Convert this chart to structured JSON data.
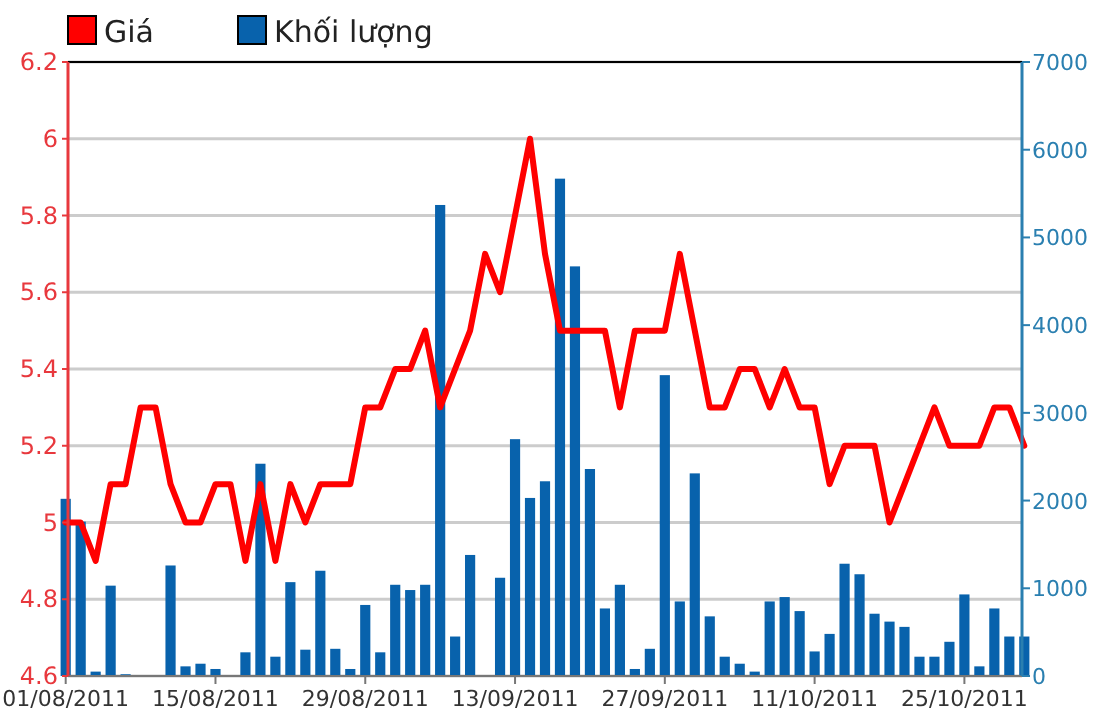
{
  "chart_data": {
    "type": "line",
    "categories": [
      "01/08/2011",
      null,
      null,
      null,
      null,
      null,
      null,
      null,
      null,
      null,
      "15/08/2011",
      null,
      null,
      null,
      null,
      null,
      null,
      null,
      null,
      null,
      "29/08/2011",
      null,
      null,
      null,
      null,
      null,
      null,
      null,
      null,
      null,
      "13/09/2011",
      null,
      null,
      null,
      null,
      null,
      null,
      null,
      null,
      null,
      "27/09/2011",
      null,
      null,
      null,
      null,
      null,
      null,
      null,
      null,
      null,
      "11/10/2011",
      null,
      null,
      null,
      null,
      null,
      null,
      null,
      null,
      null,
      "25/10/2011",
      null,
      null,
      null,
      null
    ],
    "series": [
      {
        "name": "Khối lượng",
        "type": "bar",
        "axis": "y2",
        "color": "#0862ac",
        "values": [
          2020,
          1760,
          50,
          1030,
          20,
          0,
          0,
          1260,
          110,
          140,
          80,
          0,
          270,
          2420,
          220,
          1070,
          300,
          1200,
          310,
          80,
          810,
          270,
          1040,
          980,
          1040,
          5370,
          450,
          1380,
          0,
          1120,
          2700,
          2030,
          2220,
          5670,
          4670,
          2360,
          770,
          1040,
          80,
          310,
          3430,
          850,
          2310,
          680,
          220,
          140,
          50,
          850,
          900,
          740,
          280,
          480,
          1280,
          1160,
          710,
          620,
          560,
          220,
          220,
          390,
          930,
          110,
          770,
          450,
          450
        ]
      },
      {
        "name": "Giá",
        "color": "#ff0000",
        "values": [
          5.0,
          5.0,
          4.9,
          5.1,
          5.1,
          5.3,
          5.3,
          5.1,
          5.0,
          5.0,
          5.1,
          5.1,
          4.9,
          5.1,
          4.9,
          5.1,
          5.0,
          5.1,
          5.1,
          5.1,
          5.3,
          5.3,
          5.4,
          5.4,
          5.5,
          5.3,
          5.4,
          5.5,
          5.7,
          5.6,
          5.8,
          6.0,
          5.7,
          5.5,
          5.5,
          5.5,
          5.5,
          5.3,
          5.5,
          5.5,
          5.5,
          5.7,
          5.5,
          5.3,
          5.3,
          5.4,
          5.4,
          5.3,
          5.4,
          5.3,
          5.3,
          5.1,
          5.2,
          5.2,
          5.2,
          5.0,
          5.1,
          5.2,
          5.3,
          5.2,
          5.2,
          5.2,
          5.3,
          5.3,
          5.2
        ]
      }
    ],
    "ylim": [
      4.6,
      6.2
    ],
    "yticks": [
      4.6,
      4.8,
      5,
      5.2,
      5.4,
      5.6,
      5.8,
      6,
      6.2
    ],
    "y2lim": [
      0,
      7000
    ],
    "y2ticks": [
      0,
      1000,
      2000,
      3000,
      4000,
      5000,
      6000,
      7000
    ],
    "grid": "y",
    "legend": "top left",
    "marker": "none",
    "line_style": "solid"
  }
}
